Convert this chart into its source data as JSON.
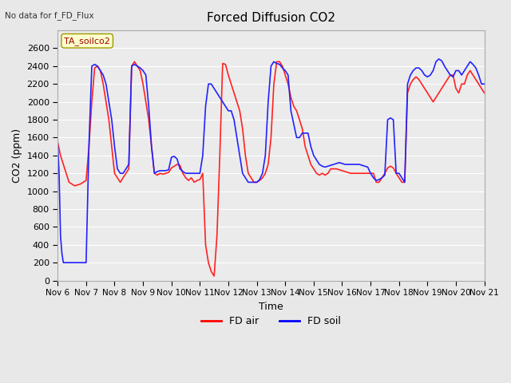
{
  "title": "Forced Diffusion CO2",
  "xlabel": "Time",
  "ylabel": "CO2 (ppm)",
  "top_left_text": "No data for f_FD_Flux",
  "annotation_box": "TA_soilco2",
  "ylim": [
    0,
    2800
  ],
  "yticks": [
    0,
    200,
    400,
    600,
    800,
    1000,
    1200,
    1400,
    1600,
    1800,
    2000,
    2200,
    2400,
    2600
  ],
  "legend_labels": [
    "FD air",
    "FD soil"
  ],
  "legend_colors": [
    "#ff0000",
    "#0000ff"
  ],
  "bg_color": "#e8e8e8",
  "plot_bg_color": "#f0f0f0",
  "red_color": "#ff2222",
  "blue_color": "#2222ff",
  "x_start": 6.0,
  "x_end": 21.0,
  "xtick_labels": [
    "Nov 6",
    "Nov 7",
    "Nov 8",
    "Nov 9",
    "Nov 10",
    "Nov 11",
    "Nov 12",
    "Nov 13",
    "Nov 14",
    "Nov 15",
    "Nov 16",
    "Nov 17",
    "Nov 18",
    "Nov 19",
    "Nov 20",
    "Nov 21"
  ],
  "xtick_positions": [
    6,
    7,
    8,
    9,
    10,
    11,
    12,
    13,
    14,
    15,
    16,
    17,
    18,
    19,
    20,
    21
  ],
  "red_x": [
    6.0,
    6.1,
    6.2,
    6.3,
    6.4,
    6.5,
    6.6,
    6.7,
    6.8,
    6.9,
    7.0,
    7.1,
    7.2,
    7.3,
    7.4,
    7.5,
    7.6,
    7.7,
    7.8,
    7.9,
    8.0,
    8.1,
    8.2,
    8.3,
    8.4,
    8.5,
    8.6,
    8.7,
    8.8,
    8.9,
    9.0,
    9.1,
    9.2,
    9.3,
    9.4,
    9.5,
    9.6,
    9.7,
    9.8,
    9.9,
    10.0,
    10.1,
    10.2,
    10.3,
    10.4,
    10.5,
    10.6,
    10.7,
    10.8,
    10.9,
    11.0,
    11.1,
    11.2,
    11.3,
    11.4,
    11.5,
    11.6,
    11.7,
    11.8,
    11.9,
    12.0,
    12.1,
    12.2,
    12.3,
    12.4,
    12.5,
    12.6,
    12.7,
    12.8,
    12.9,
    13.0,
    13.1,
    13.2,
    13.3,
    13.4,
    13.5,
    13.6,
    13.7,
    13.8,
    13.9,
    14.0,
    14.1,
    14.2,
    14.3,
    14.4,
    14.5,
    14.6,
    14.7,
    14.8,
    14.9,
    15.0,
    15.1,
    15.2,
    15.3,
    15.4,
    15.5,
    15.6,
    15.7,
    15.8,
    15.9,
    16.0,
    16.1,
    16.2,
    16.3,
    16.4,
    16.5,
    16.6,
    16.7,
    16.8,
    16.9,
    17.0,
    17.1,
    17.2,
    17.3,
    17.4,
    17.5,
    17.6,
    17.7,
    17.8,
    17.9,
    18.0,
    18.1,
    18.2,
    18.3,
    18.4,
    18.5,
    18.6,
    18.7,
    18.8,
    18.9,
    19.0,
    19.1,
    19.2,
    19.3,
    19.4,
    19.5,
    19.6,
    19.7,
    19.8,
    19.9,
    20.0,
    20.1,
    20.2,
    20.3,
    20.4,
    20.5,
    20.6,
    20.7,
    20.8,
    20.9,
    21.0
  ],
  "red_y": [
    1550,
    1400,
    1300,
    1200,
    1100,
    1080,
    1060,
    1070,
    1080,
    1100,
    1120,
    1500,
    2000,
    2380,
    2400,
    2350,
    2200,
    2000,
    1800,
    1500,
    1200,
    1150,
    1100,
    1150,
    1200,
    1250,
    2400,
    2450,
    2400,
    2350,
    2200,
    2000,
    1800,
    1500,
    1200,
    1180,
    1200,
    1190,
    1200,
    1210,
    1260,
    1280,
    1300,
    1290,
    1200,
    1150,
    1120,
    1150,
    1100,
    1120,
    1130,
    1200,
    400,
    200,
    100,
    50,
    500,
    1400,
    2430,
    2420,
    2300,
    2200,
    2100,
    2000,
    1900,
    1700,
    1400,
    1200,
    1150,
    1100,
    1100,
    1120,
    1150,
    1200,
    1300,
    1600,
    2200,
    2450,
    2450,
    2400,
    2300,
    2200,
    2050,
    1950,
    1900,
    1800,
    1700,
    1500,
    1400,
    1300,
    1250,
    1200,
    1180,
    1200,
    1180,
    1200,
    1250,
    1250,
    1250,
    1240,
    1230,
    1220,
    1210,
    1200,
    1200,
    1200,
    1200,
    1200,
    1200,
    1200,
    1200,
    1200,
    1100,
    1100,
    1150,
    1200,
    1260,
    1280,
    1260,
    1200,
    1150,
    1100,
    1100,
    2100,
    2200,
    2250,
    2280,
    2250,
    2200,
    2150,
    2100,
    2050,
    2000,
    2050,
    2100,
    2150,
    2200,
    2250,
    2300,
    2300,
    2150,
    2100,
    2200,
    2200,
    2300,
    2350,
    2300,
    2250,
    2200,
    2150,
    2100
  ],
  "blue_x": [
    6.0,
    6.05,
    6.1,
    6.15,
    6.2,
    6.3,
    6.4,
    6.5,
    6.6,
    6.7,
    6.8,
    6.9,
    7.0,
    7.1,
    7.2,
    7.3,
    7.4,
    7.5,
    7.6,
    7.7,
    7.8,
    7.9,
    8.0,
    8.1,
    8.2,
    8.3,
    8.4,
    8.5,
    8.6,
    8.7,
    8.8,
    8.9,
    9.0,
    9.1,
    9.2,
    9.3,
    9.4,
    9.5,
    9.6,
    9.7,
    9.8,
    9.9,
    10.0,
    10.1,
    10.2,
    10.3,
    10.4,
    10.5,
    10.6,
    10.7,
    10.8,
    10.9,
    11.0,
    11.1,
    11.2,
    11.3,
    11.4,
    11.5,
    11.6,
    11.7,
    11.8,
    11.9,
    12.0,
    12.1,
    12.2,
    12.3,
    12.4,
    12.5,
    12.6,
    12.7,
    12.8,
    12.9,
    13.0,
    13.1,
    13.2,
    13.3,
    13.4,
    13.5,
    13.6,
    13.7,
    13.8,
    13.9,
    14.0,
    14.1,
    14.2,
    14.3,
    14.4,
    14.5,
    14.6,
    14.7,
    14.8,
    14.9,
    15.0,
    15.1,
    15.2,
    15.3,
    15.4,
    15.5,
    15.6,
    15.7,
    15.8,
    15.9,
    16.0,
    16.1,
    16.2,
    16.3,
    16.4,
    16.5,
    16.6,
    16.7,
    16.8,
    16.9,
    17.0,
    17.1,
    17.2,
    17.3,
    17.4,
    17.5,
    17.6,
    17.7,
    17.8,
    17.9,
    18.0,
    18.1,
    18.2,
    18.3,
    18.4,
    18.5,
    18.6,
    18.7,
    18.8,
    18.9,
    19.0,
    19.1,
    19.2,
    19.3,
    19.4,
    19.5,
    19.6,
    19.7,
    19.8,
    19.9,
    20.0,
    20.1,
    20.2,
    20.3,
    20.4,
    20.5,
    20.6,
    20.7,
    20.8,
    20.9,
    21.0
  ],
  "blue_y": [
    1550,
    1200,
    500,
    300,
    200,
    200,
    200,
    200,
    200,
    200,
    200,
    200,
    200,
    1520,
    2400,
    2420,
    2400,
    2350,
    2300,
    2200,
    2000,
    1800,
    1500,
    1250,
    1200,
    1200,
    1250,
    1300,
    2400,
    2420,
    2400,
    2380,
    2350,
    2300,
    1950,
    1500,
    1200,
    1220,
    1230,
    1230,
    1230,
    1240,
    1380,
    1390,
    1360,
    1250,
    1220,
    1200,
    1200,
    1200,
    1200,
    1200,
    1200,
    1400,
    1950,
    2200,
    2200,
    2150,
    2100,
    2050,
    2000,
    1950,
    1900,
    1900,
    1800,
    1600,
    1400,
    1200,
    1150,
    1100,
    1100,
    1100,
    1100,
    1130,
    1200,
    1400,
    2000,
    2400,
    2450,
    2430,
    2420,
    2380,
    2350,
    2300,
    1900,
    1750,
    1600,
    1600,
    1650,
    1650,
    1650,
    1500,
    1400,
    1350,
    1300,
    1280,
    1270,
    1280,
    1290,
    1300,
    1310,
    1320,
    1310,
    1300,
    1300,
    1300,
    1300,
    1300,
    1300,
    1290,
    1280,
    1270,
    1200,
    1150,
    1120,
    1130,
    1150,
    1180,
    1800,
    1820,
    1800,
    1200,
    1200,
    1150,
    1100,
    2200,
    2300,
    2350,
    2380,
    2380,
    2350,
    2300,
    2280,
    2300,
    2350,
    2450,
    2480,
    2460,
    2400,
    2350,
    2300,
    2280,
    2350,
    2350,
    2300,
    2350,
    2400,
    2450,
    2420,
    2380,
    2300,
    2200,
    2200
  ]
}
